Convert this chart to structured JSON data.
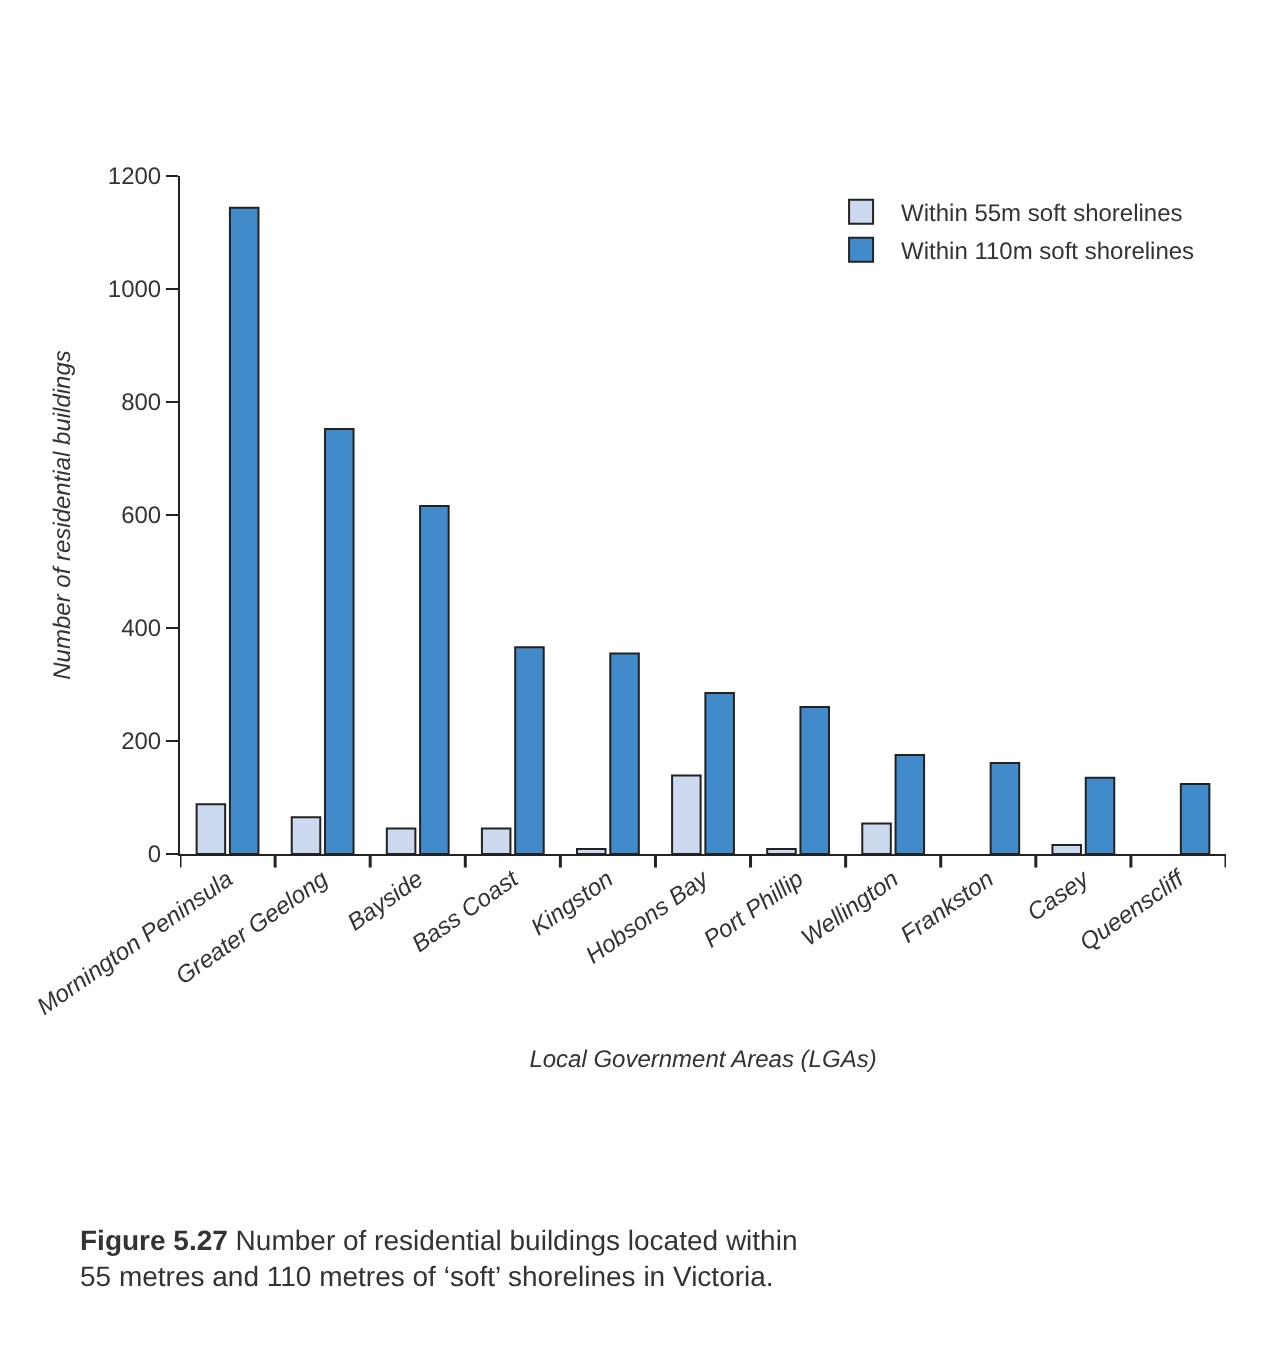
{
  "chart_data": {
    "type": "bar",
    "categories": [
      "Mornington Peninsula",
      "Greater Geelong",
      "Bayside",
      "Bass Coast",
      "Kingston",
      "Hobsons Bay",
      "Port Phillip",
      "Wellington",
      "Frankston",
      "Casey",
      "Queenscliff"
    ],
    "series": [
      {
        "name": "Within 55m soft shorelines",
        "color": "#cdd9ef",
        "values": [
          88,
          65,
          45,
          45,
          9,
          139,
          9,
          54,
          null,
          16,
          null
        ]
      },
      {
        "name": "Within 110m soft shorelines",
        "color": "#428bca",
        "values": [
          1144,
          752,
          616,
          366,
          355,
          285,
          260,
          175,
          161,
          135,
          124
        ]
      }
    ],
    "xlabel": "Local Government Areas (LGAs)",
    "ylabel": "Number of residential buildings",
    "ylim": [
      0,
      1200
    ],
    "yticks": [
      0,
      200,
      400,
      600,
      800,
      1000,
      1200
    ],
    "legend": "top right",
    "annotations": [
      "Figure 5.27",
      "Number of residential buildings located within 55 metres and 110 metres of ‘soft’ shorelines in Victoria."
    ]
  }
}
